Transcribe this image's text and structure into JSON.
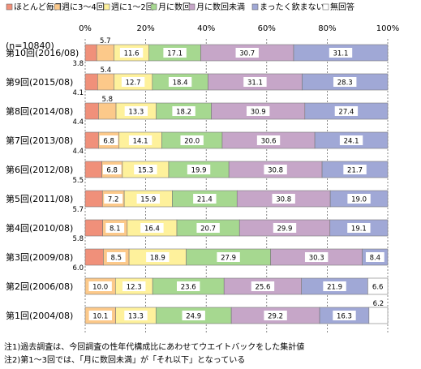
{
  "chart_data": {
    "type": "bar",
    "stacked": true,
    "orientation": "horizontal",
    "grid": true,
    "legend_position": "top",
    "xlim": [
      0,
      100
    ],
    "x_ticks": [
      "0%",
      "20%",
      "40%",
      "60%",
      "80%",
      "100%"
    ],
    "categories": [
      "第10回(2016/08)",
      "第9回(2015/08)",
      "第8回(2014/08)",
      "第7回(2013/08)",
      "第6回(2012/08)",
      "第5回(2011/08)",
      "第4回(2010/08)",
      "第3回(2009/08)",
      "第2回(2006/08)",
      "第1回(2004/08)"
    ],
    "sub_label": "(n=10840)",
    "series": [
      {
        "name": "ほとんど毎日",
        "color": "#f0907a",
        "values": [
          3.8,
          4.1,
          4.4,
          4.4,
          5.5,
          5.7,
          5.8,
          6.0,
          0,
          0
        ]
      },
      {
        "name": "週に3～4回",
        "color": "#fcc98a",
        "values": [
          5.7,
          5.4,
          5.8,
          6.8,
          6.8,
          7.2,
          8.1,
          8.5,
          10.0,
          10.1
        ]
      },
      {
        "name": "週に1～2回",
        "color": "#fef19c",
        "values": [
          11.6,
          12.7,
          13.3,
          14.1,
          15.3,
          15.9,
          16.4,
          18.9,
          12.3,
          13.3
        ]
      },
      {
        "name": "月に数回",
        "color": "#a6d890",
        "values": [
          17.1,
          18.4,
          18.2,
          20.0,
          19.9,
          21.4,
          20.7,
          27.9,
          23.6,
          24.9
        ]
      },
      {
        "name": "月に数回未満",
        "color": "#c6a6c8",
        "values": [
          30.7,
          31.1,
          30.9,
          30.6,
          30.8,
          30.8,
          29.9,
          30.3,
          25.6,
          29.2
        ]
      },
      {
        "name": "まったく飲まない",
        "color": "#a0a8d6",
        "values": [
          31.1,
          28.3,
          27.4,
          24.1,
          21.7,
          19.0,
          19.1,
          8.4,
          21.9,
          16.3
        ]
      },
      {
        "name": "無回答",
        "color": "#ffffff",
        "values": [
          0,
          0,
          0,
          0,
          0,
          0,
          0,
          0,
          6.6,
          6.2
        ]
      }
    ]
  },
  "notes": [
    "注1)過去調査は、今回調査の性年代構成比にあわせてウエイトバックをした集計値",
    "注2)第1～3回では、「月に数回未満」が「それ以下」となっている"
  ]
}
